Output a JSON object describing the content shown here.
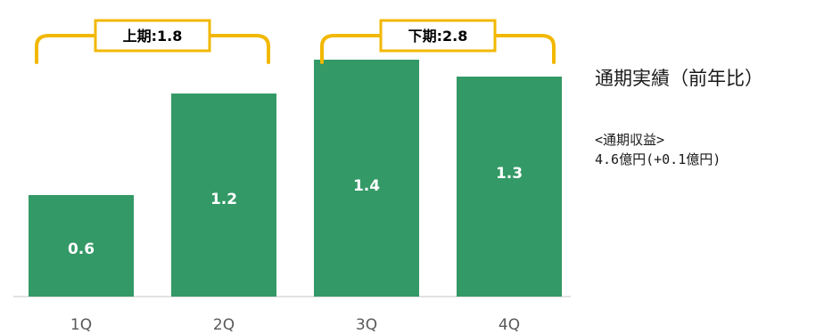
{
  "chart_data": {
    "type": "bar",
    "categories": [
      "1Q",
      "2Q",
      "3Q",
      "4Q"
    ],
    "values": [
      0.6,
      1.2,
      1.4,
      1.3
    ],
    "data_labels": [
      "0.6",
      "1.2",
      "1.4",
      "1.3"
    ],
    "title": "",
    "xlabel": "",
    "ylabel": "",
    "ylim": [
      0,
      1.5
    ],
    "grid": false,
    "bar_color": "#339966",
    "annotations": [
      {
        "label": "上期:1.8",
        "categories": [
          "1Q",
          "2Q"
        ],
        "value": 1.8
      },
      {
        "label": "下期:2.8",
        "categories": [
          "3Q",
          "4Q"
        ],
        "value": 2.8
      }
    ],
    "bracket_color": "#f2b800"
  },
  "side_panel": {
    "title": "通期実績（前年比）",
    "subheading": "<通期収益>",
    "detail": "4.6億円(+0.1億円)"
  }
}
